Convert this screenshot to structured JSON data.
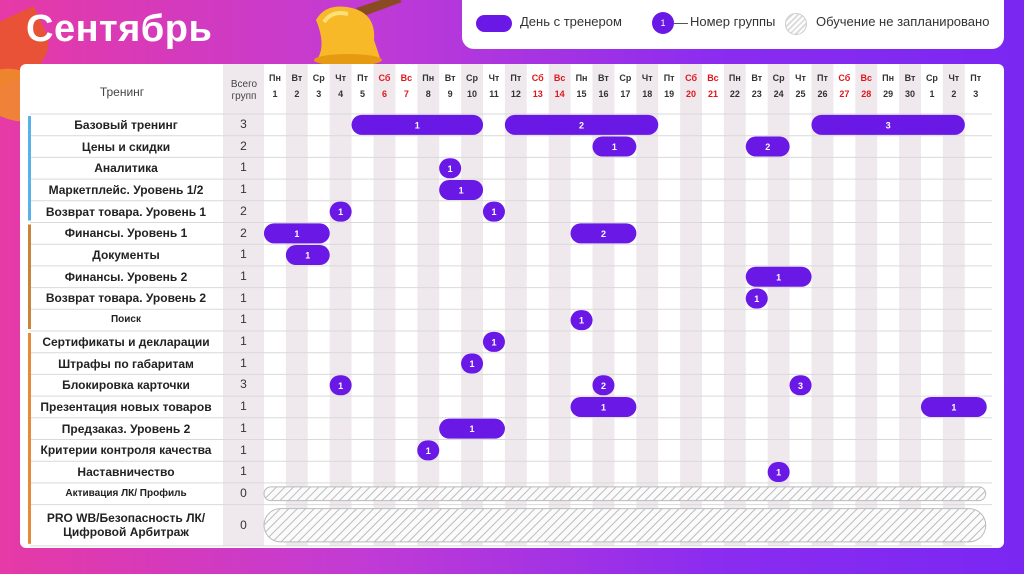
{
  "page": {
    "title": "Сентябрь"
  },
  "legend": {
    "trainer_day": "День с тренером",
    "group_sample": "1",
    "group_number": "Номер группы",
    "not_planned": "Обучение не запланировано"
  },
  "colors": {
    "pill": "#6a18e6",
    "weekend": "#e0161b",
    "stripe": "#efe9ee",
    "blue_accent": "#5ab0e8",
    "brown_accent": "#c8833c",
    "orange_accent": "#e58a3a"
  },
  "table": {
    "col_training": "Тренинг",
    "col_total": "Всего групп",
    "days": [
      {
        "wd": "Пн",
        "d": "1"
      },
      {
        "wd": "Вт",
        "d": "2"
      },
      {
        "wd": "Ср",
        "d": "3"
      },
      {
        "wd": "Чт",
        "d": "4"
      },
      {
        "wd": "Пт",
        "d": "5"
      },
      {
        "wd": "Сб",
        "d": "6",
        "we": true
      },
      {
        "wd": "Вс",
        "d": "7",
        "we": true
      },
      {
        "wd": "Пн",
        "d": "8"
      },
      {
        "wd": "Вт",
        "d": "9"
      },
      {
        "wd": "Ср",
        "d": "10"
      },
      {
        "wd": "Чт",
        "d": "11"
      },
      {
        "wd": "Пт",
        "d": "12"
      },
      {
        "wd": "Сб",
        "d": "13",
        "we": true
      },
      {
        "wd": "Вс",
        "d": "14",
        "we": true
      },
      {
        "wd": "Пн",
        "d": "15"
      },
      {
        "wd": "Вт",
        "d": "16"
      },
      {
        "wd": "Ср",
        "d": "17"
      },
      {
        "wd": "Чт",
        "d": "18"
      },
      {
        "wd": "Пт",
        "d": "19"
      },
      {
        "wd": "Сб",
        "d": "20",
        "we": true
      },
      {
        "wd": "Вс",
        "d": "21",
        "we": true
      },
      {
        "wd": "Пн",
        "d": "22"
      },
      {
        "wd": "Вт",
        "d": "23"
      },
      {
        "wd": "Ср",
        "d": "24"
      },
      {
        "wd": "Чт",
        "d": "25"
      },
      {
        "wd": "Пт",
        "d": "26"
      },
      {
        "wd": "Сб",
        "d": "27",
        "we": true
      },
      {
        "wd": "Вс",
        "d": "28",
        "we": true
      },
      {
        "wd": "Пн",
        "d": "29"
      },
      {
        "wd": "Вт",
        "d": "30"
      },
      {
        "wd": "Ср",
        "d": "1"
      },
      {
        "wd": "Чт",
        "d": "2"
      },
      {
        "wd": "Пт",
        "d": "3"
      }
    ],
    "rows": [
      {
        "name": "Базовый тренинг",
        "total": "3",
        "bold": true,
        "bars": [
          {
            "s": 4,
            "e": 9,
            "g": "1"
          },
          {
            "s": 11,
            "e": 17,
            "g": "2"
          },
          {
            "s": 25,
            "e": 31,
            "g": "3"
          }
        ]
      },
      {
        "name": "Цены и скидки",
        "total": "2",
        "bold": true,
        "bars": [
          {
            "s": 15,
            "e": 16,
            "g": "1"
          },
          {
            "s": 22,
            "e": 23,
            "g": "2"
          }
        ]
      },
      {
        "name": "Аналитика",
        "total": "1",
        "bold": true,
        "bars": [
          {
            "s": 8,
            "e": 8,
            "g": "1"
          }
        ]
      },
      {
        "name": "Маркетплейс. Уровень 1/2",
        "total": "1",
        "bold": true,
        "bars": [
          {
            "s": 8,
            "e": 9,
            "g": "1"
          }
        ]
      },
      {
        "name": "Возврат товара. Уровень 1",
        "total": "2",
        "bold": true,
        "bars": [
          {
            "s": 3,
            "e": 3,
            "g": "1"
          },
          {
            "s": 10,
            "e": 10,
            "g": "1"
          }
        ]
      },
      {
        "name": "Финансы. Уровень 1",
        "total": "2",
        "bold": true,
        "bars": [
          {
            "s": 0,
            "e": 2,
            "g": "1"
          },
          {
            "s": 14,
            "e": 16,
            "g": "2"
          }
        ]
      },
      {
        "name": "Документы",
        "total": "1",
        "bold": true,
        "bars": [
          {
            "s": 1,
            "e": 2,
            "g": "1"
          }
        ]
      },
      {
        "name": "Финансы. Уровень 2",
        "total": "1",
        "bold": true,
        "bars": [
          {
            "s": 22,
            "e": 24,
            "g": "1"
          }
        ]
      },
      {
        "name": "Возврат товара. Уровень 2",
        "total": "1",
        "bold": true,
        "bars": [
          {
            "s": 22,
            "e": 22,
            "g": "1"
          }
        ]
      },
      {
        "name": "Поиск",
        "total": "1",
        "bold": true,
        "small": true,
        "bars": [
          {
            "s": 14,
            "e": 14,
            "g": "1"
          }
        ]
      },
      {
        "name": "Сертификаты и декларации",
        "total": "1",
        "bold": true,
        "bars": [
          {
            "s": 10,
            "e": 10,
            "g": "1"
          }
        ]
      },
      {
        "name": "Штрафы по габаритам",
        "total": "1",
        "bold": true,
        "bars": [
          {
            "s": 9,
            "e": 9,
            "g": "1"
          }
        ]
      },
      {
        "name": "Блокировка карточки",
        "total": "3",
        "bold": true,
        "bars": [
          {
            "s": 3,
            "e": 3,
            "g": "1"
          },
          {
            "s": 15,
            "e": 15,
            "g": "2"
          },
          {
            "s": 24,
            "e": 24,
            "g": "3"
          }
        ]
      },
      {
        "name": "Презентация новых товаров",
        "total": "1",
        "bold": true,
        "bars": [
          {
            "s": 14,
            "e": 16,
            "g": "1"
          },
          {
            "s": 30,
            "e": 32,
            "g": "1"
          }
        ]
      },
      {
        "name": "Предзаказ. Уровень 2",
        "total": "1",
        "bold": true,
        "bars": [
          {
            "s": 8,
            "e": 10,
            "g": "1"
          }
        ]
      },
      {
        "name": "Критерии контроля качества",
        "total": "1",
        "bold": true,
        "bars": [
          {
            "s": 7,
            "e": 7,
            "g": "1"
          }
        ]
      },
      {
        "name": "Наставничество",
        "total": "1",
        "bold": true,
        "bars": [
          {
            "s": 23,
            "e": 23,
            "g": "1"
          }
        ]
      },
      {
        "name": "Активация ЛК/ Профиль",
        "total": "0",
        "bold": true,
        "small": true,
        "hatch": true,
        "bars": []
      },
      {
        "name": [
          "PRO WB/Безопасность ЛК/",
          "Цифровой Арбитраж"
        ],
        "total": "0",
        "bold": true,
        "hatch": true,
        "tall": true,
        "bars": []
      }
    ]
  }
}
